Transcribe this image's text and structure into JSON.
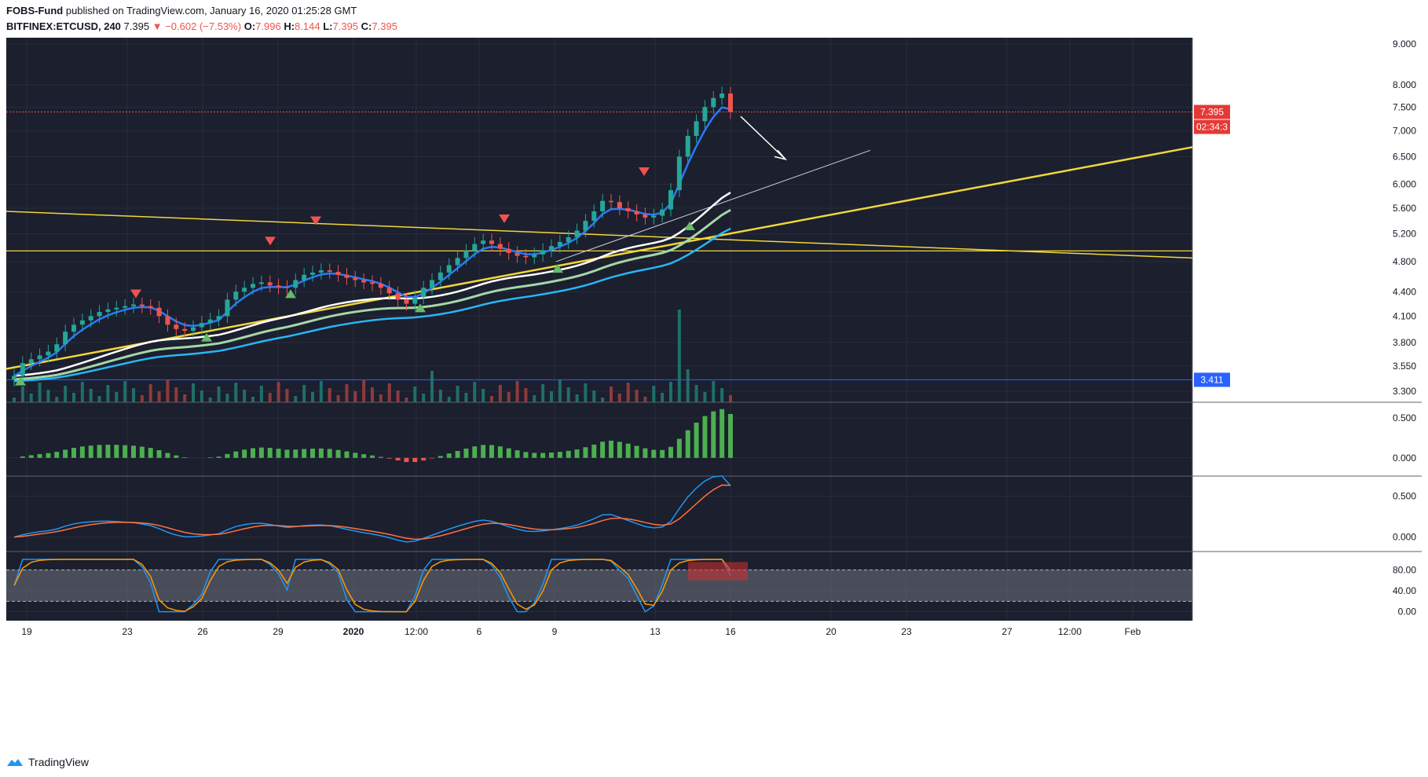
{
  "header": {
    "publisher": "FOBS-Fund",
    "published_text": "published on TradingView.com, January 16, 2020 01:25:28 GMT",
    "symbol": "BITFINEX:ETCUSD, 240",
    "last": "7.395",
    "change": "−0.602 (−7.53%)",
    "o_label": "O:",
    "o_val": "7.996",
    "h_label": "H:",
    "h_val": "8.144",
    "l_label": "L:",
    "l_val": "7.395",
    "c_label": "C:",
    "c_val": "7.395"
  },
  "footer": {
    "brand": "TradingView"
  },
  "colors": {
    "bg": "#1b1f2e",
    "grid": "#2a2e39",
    "up": "#26a69a",
    "down": "#ef5350",
    "yellow": "#f2d63a",
    "white": "#ffffff",
    "lightgreen": "#a5d6a7",
    "cyan": "#29b6f6"
  },
  "chart_data": [
    {
      "type": "candlestick",
      "title": "BITFINEX:ETCUSD, 240",
      "x_ticks": [
        "19",
        "23",
        "26",
        "29",
        "2020",
        "12:00",
        "6",
        "9",
        "13",
        "16",
        "20",
        "23",
        "27",
        "12:00",
        "Feb"
      ],
      "y_ticks": [
        9.0,
        8.0,
        7.5,
        7.0,
        6.5,
        6.0,
        5.6,
        5.2,
        4.8,
        4.4,
        4.1,
        3.8,
        3.55,
        3.3
      ],
      "y_tick_labels": [
        "9.000",
        "8.000",
        "7.500",
        "7.000",
        "6.500",
        "6.000",
        "5.600",
        "5.200",
        "4.800",
        "4.400",
        "4.100",
        "3.800",
        "3.550",
        "3.300"
      ],
      "scale": "log",
      "last_price_label": "7.395",
      "countdown_label": "02:34:3",
      "support_label": "3.411",
      "close_series": [
        3.45,
        3.58,
        3.62,
        3.66,
        3.7,
        3.78,
        3.92,
        4.0,
        4.05,
        4.1,
        4.15,
        4.18,
        4.2,
        4.22,
        4.24,
        4.22,
        4.2,
        4.1,
        4.0,
        3.95,
        3.93,
        3.97,
        4.02,
        4.06,
        4.1,
        4.3,
        4.4,
        4.45,
        4.5,
        4.52,
        4.48,
        4.46,
        4.45,
        4.55,
        4.62,
        4.65,
        4.68,
        4.66,
        4.62,
        4.58,
        4.55,
        4.52,
        4.5,
        4.45,
        4.38,
        4.3,
        4.25,
        4.33,
        4.45,
        4.55,
        4.65,
        4.75,
        4.85,
        4.95,
        5.05,
        5.1,
        5.05,
        4.98,
        4.92,
        4.88,
        4.86,
        4.9,
        4.96,
        5.02,
        5.08,
        5.15,
        5.25,
        5.4,
        5.55,
        5.72,
        5.7,
        5.6,
        5.55,
        5.5,
        5.45,
        5.48,
        5.58,
        5.9,
        6.5,
        6.9,
        7.2,
        7.5,
        7.7,
        7.8,
        7.395
      ],
      "annotations": {
        "sell_markers": 6,
        "buy_markers": 7,
        "down_arrow": true
      }
    },
    {
      "type": "bar",
      "title": "",
      "y_ticks": [
        0.5,
        0.0
      ],
      "y_tick_labels": [
        "0.500",
        "0.000"
      ],
      "ylim": [
        -0.15,
        0.6
      ]
    },
    {
      "type": "line",
      "title": "",
      "y_ticks": [
        0.5,
        0.0
      ],
      "y_tick_labels": [
        "0.500",
        "0.000"
      ],
      "ylim": [
        -0.1,
        0.65
      ]
    },
    {
      "type": "line",
      "title": "",
      "y_ticks": [
        80,
        40,
        0
      ],
      "y_tick_labels": [
        "80.00",
        "40.00",
        "0.00"
      ],
      "ylim": [
        -5,
        100
      ],
      "band": [
        20,
        80
      ]
    }
  ]
}
